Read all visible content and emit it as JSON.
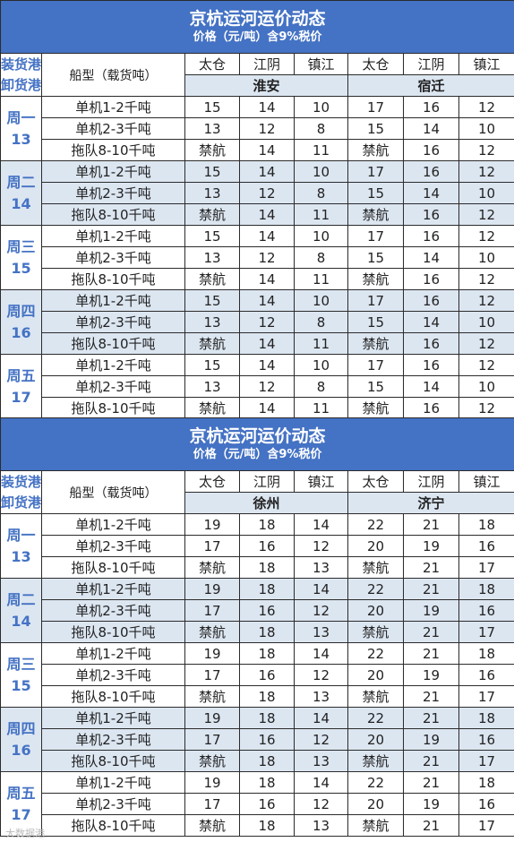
{
  "tables": [
    {
      "title": "京杭运河运价动态",
      "subtitle": "价格（元/吨）含9%税价",
      "corner": [
        "装货港",
        "卸货港"
      ],
      "ship_header": "船型（载货吨）",
      "ports": [
        "太仓",
        "江阴",
        "镇江",
        "太仓",
        "江阴",
        "镇江"
      ],
      "destinations": [
        "淮安",
        "宿迁"
      ],
      "days": [
        {
          "name": "周一",
          "date": "13",
          "rows": [
            {
              "ship": "单机1-2千吨",
              "values": [
                "15",
                "14",
                "10",
                "17",
                "16",
                "12"
              ]
            },
            {
              "ship": "单机2-3千吨",
              "values": [
                "13",
                "12",
                "8",
                "15",
                "14",
                "10"
              ]
            },
            {
              "ship": "拖队8-10千吨",
              "values": [
                "禁航",
                "14",
                "11",
                "禁航",
                "16",
                "12"
              ]
            }
          ]
        },
        {
          "name": "周二",
          "date": "14",
          "rows": [
            {
              "ship": "单机1-2千吨",
              "values": [
                "15",
                "14",
                "10",
                "17",
                "16",
                "12"
              ]
            },
            {
              "ship": "单机2-3千吨",
              "values": [
                "13",
                "12",
                "8",
                "15",
                "14",
                "10"
              ]
            },
            {
              "ship": "拖队8-10千吨",
              "values": [
                "禁航",
                "14",
                "11",
                "禁航",
                "16",
                "12"
              ]
            }
          ]
        },
        {
          "name": "周三",
          "date": "15",
          "rows": [
            {
              "ship": "单机1-2千吨",
              "values": [
                "15",
                "14",
                "10",
                "17",
                "16",
                "12"
              ]
            },
            {
              "ship": "单机2-3千吨",
              "values": [
                "13",
                "12",
                "8",
                "15",
                "14",
                "10"
              ]
            },
            {
              "ship": "拖队8-10千吨",
              "values": [
                "禁航",
                "14",
                "11",
                "禁航",
                "16",
                "12"
              ]
            }
          ]
        },
        {
          "name": "周四",
          "date": "16",
          "rows": [
            {
              "ship": "单机1-2千吨",
              "values": [
                "15",
                "14",
                "10",
                "17",
                "16",
                "12"
              ]
            },
            {
              "ship": "单机2-3千吨",
              "values": [
                "13",
                "12",
                "8",
                "15",
                "14",
                "10"
              ]
            },
            {
              "ship": "拖队8-10千吨",
              "values": [
                "禁航",
                "14",
                "11",
                "禁航",
                "16",
                "12"
              ]
            }
          ]
        },
        {
          "name": "周五",
          "date": "17",
          "rows": [
            {
              "ship": "单机1-2千吨",
              "values": [
                "15",
                "14",
                "10",
                "17",
                "16",
                "12"
              ]
            },
            {
              "ship": "单机2-3千吨",
              "values": [
                "13",
                "12",
                "8",
                "15",
                "14",
                "10"
              ]
            },
            {
              "ship": "拖队8-10千吨",
              "values": [
                "禁航",
                "14",
                "11",
                "禁航",
                "16",
                "12"
              ]
            }
          ]
        }
      ]
    },
    {
      "title": "京杭运河运价动态",
      "subtitle": "价格（元/吨）含9%税价",
      "corner": [
        "装货港",
        "卸货港"
      ],
      "ship_header": "船型（载货吨）",
      "ports": [
        "太仓",
        "江阴",
        "镇江",
        "太仓",
        "江阴",
        "镇江"
      ],
      "destinations": [
        "徐州",
        "济宁"
      ],
      "days": [
        {
          "name": "周一",
          "date": "13",
          "rows": [
            {
              "ship": "单机1-2千吨",
              "values": [
                "19",
                "18",
                "14",
                "22",
                "21",
                "18"
              ]
            },
            {
              "ship": "单机2-3千吨",
              "values": [
                "17",
                "16",
                "12",
                "20",
                "19",
                "16"
              ]
            },
            {
              "ship": "拖队8-10千吨",
              "values": [
                "禁航",
                "18",
                "13",
                "禁航",
                "21",
                "17"
              ]
            }
          ]
        },
        {
          "name": "周二",
          "date": "14",
          "rows": [
            {
              "ship": "单机1-2千吨",
              "values": [
                "19",
                "18",
                "14",
                "22",
                "21",
                "18"
              ]
            },
            {
              "ship": "单机2-3千吨",
              "values": [
                "17",
                "16",
                "12",
                "20",
                "19",
                "16"
              ]
            },
            {
              "ship": "拖队8-10千吨",
              "values": [
                "禁航",
                "18",
                "13",
                "禁航",
                "21",
                "17"
              ]
            }
          ]
        },
        {
          "name": "周三",
          "date": "15",
          "rows": [
            {
              "ship": "单机1-2千吨",
              "values": [
                "19",
                "18",
                "14",
                "22",
                "21",
                "18"
              ]
            },
            {
              "ship": "单机2-3千吨",
              "values": [
                "17",
                "16",
                "12",
                "20",
                "19",
                "16"
              ]
            },
            {
              "ship": "拖队8-10千吨",
              "values": [
                "禁航",
                "18",
                "13",
                "禁航",
                "21",
                "17"
              ]
            }
          ]
        },
        {
          "name": "周四",
          "date": "16",
          "rows": [
            {
              "ship": "单机1-2千吨",
              "values": [
                "19",
                "18",
                "14",
                "22",
                "21",
                "18"
              ]
            },
            {
              "ship": "单机2-3千吨",
              "values": [
                "17",
                "16",
                "12",
                "20",
                "19",
                "16"
              ]
            },
            {
              "ship": "拖队8-10千吨",
              "values": [
                "禁航",
                "18",
                "13",
                "禁航",
                "21",
                "17"
              ]
            }
          ]
        },
        {
          "name": "周五",
          "date": "17",
          "rows": [
            {
              "ship": "单机1-2千吨",
              "values": [
                "19",
                "18",
                "14",
                "22",
                "21",
                "18"
              ]
            },
            {
              "ship": "单机2-3千吨",
              "values": [
                "17",
                "16",
                "12",
                "20",
                "19",
                "16"
              ]
            },
            {
              "ship": "拖队8-10千吨",
              "values": [
                "禁航",
                "18",
                "13",
                "禁航",
                "21",
                "17"
              ]
            }
          ]
        }
      ]
    }
  ],
  "watermark": "大数据港",
  "colors": {
    "header_blue": "#4472c4",
    "band_blue": "#dce6f1",
    "title_text": "#ffffff"
  }
}
